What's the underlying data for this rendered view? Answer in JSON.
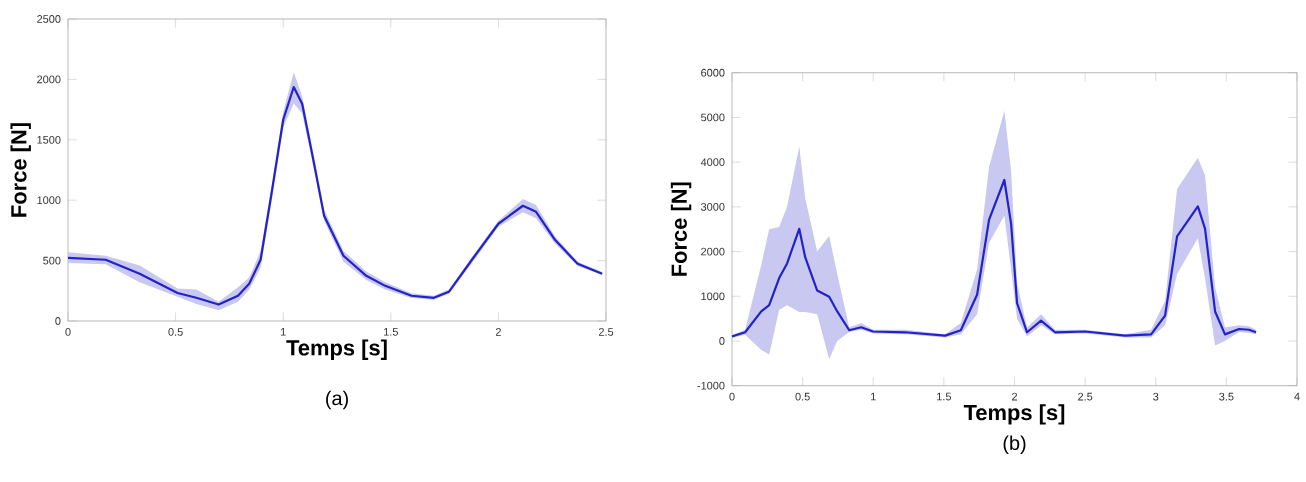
{
  "chart_data": [
    {
      "type": "line",
      "xlabel": "Temps [s]",
      "ylabel": "Force [N]",
      "annotations": [
        "(a)"
      ],
      "xlim": [
        0,
        2.5
      ],
      "ylim": [
        0,
        2500
      ],
      "xticks": [
        0,
        0.5,
        1,
        1.5,
        2,
        2.5
      ],
      "yticks": [
        0,
        500,
        1000,
        1500,
        2000,
        2500
      ],
      "grid": false,
      "marker": "none",
      "line_style": "solid",
      "x": [
        0,
        0.175,
        0.333,
        0.509,
        0.596,
        0.7,
        0.79,
        0.842,
        0.895,
        0.947,
        1.0,
        1.049,
        1.088,
        1.14,
        1.19,
        1.28,
        1.386,
        1.474,
        1.596,
        1.7,
        1.77,
        1.877,
        2.0,
        2.114,
        2.175,
        2.263,
        2.368,
        2.482
      ],
      "series": [
        {
          "color": "#2222c8",
          "values": [
            523,
            507,
            391,
            232,
            192,
            136,
            209,
            308,
            507,
            1070,
            1666,
            1937,
            1798,
            1334,
            871,
            540,
            374,
            291,
            209,
            192,
            242,
            507,
            805,
            954,
            904,
            672,
            474,
            391
          ],
          "upper": [
            570,
            540,
            460,
            270,
            260,
            160,
            280,
            360,
            580,
            1120,
            1730,
            2060,
            1860,
            1390,
            920,
            580,
            410,
            320,
            230,
            210,
            260,
            530,
            830,
            1010,
            960,
            700,
            490,
            405
          ],
          "lower": [
            480,
            470,
            320,
            200,
            140,
            90,
            160,
            260,
            440,
            1000,
            1600,
            1800,
            1720,
            1280,
            830,
            490,
            340,
            260,
            190,
            175,
            225,
            480,
            780,
            900,
            850,
            640,
            455,
            380
          ]
        }
      ]
    },
    {
      "type": "line",
      "xlabel": "Temps [s]",
      "ylabel": "Force [N]",
      "annotations": [
        "(b)"
      ],
      "xlim": [
        0,
        4
      ],
      "ylim": [
        -1000,
        6000
      ],
      "xticks": [
        0,
        0.5,
        1,
        1.5,
        2,
        2.5,
        3,
        3.5,
        4
      ],
      "yticks": [
        -1000,
        0,
        1000,
        2000,
        3000,
        4000,
        5000,
        6000
      ],
      "grid": false,
      "marker": "none",
      "line_style": "solid",
      "x": [
        0,
        0.093,
        0.207,
        0.263,
        0.334,
        0.39,
        0.476,
        0.518,
        0.603,
        0.688,
        0.745,
        0.83,
        0.914,
        0.999,
        1.226,
        1.509,
        1.62,
        1.735,
        1.82,
        1.928,
        1.976,
        2.018,
        2.089,
        2.188,
        2.287,
        2.5,
        2.783,
        2.967,
        3.066,
        3.151,
        3.298,
        3.349,
        3.42,
        3.49,
        3.59,
        3.66,
        3.71
      ],
      "series": [
        {
          "color": "#2222c8",
          "values": [
            101,
            195,
            661,
            801,
            1408,
            1735,
            2509,
            1875,
            1128,
            988,
            661,
            241,
            307,
            213,
            195,
            120,
            241,
            1035,
            2715,
            3601,
            2621,
            848,
            195,
            456,
            195,
            213,
            120,
            148,
            568,
            2341,
            3013,
            2509,
            661,
            148,
            269,
            251,
            195
          ],
          "upper": [
            130,
            250,
            1700,
            2500,
            2550,
            3000,
            4350,
            3200,
            2000,
            2350,
            1500,
            300,
            400,
            250,
            250,
            150,
            400,
            1600,
            3900,
            5150,
            3800,
            1300,
            300,
            600,
            250,
            250,
            150,
            250,
            900,
            3400,
            4100,
            3700,
            1200,
            300,
            350,
            330,
            250
          ],
          "lower": [
            70,
            140,
            -200,
            -300,
            700,
            800,
            650,
            650,
            600,
            -400,
            0,
            200,
            250,
            170,
            150,
            80,
            150,
            600,
            2200,
            2800,
            1600,
            500,
            100,
            350,
            150,
            170,
            80,
            80,
            350,
            1500,
            2300,
            1400,
            -100,
            0,
            200,
            180,
            150
          ]
        }
      ]
    }
  ]
}
